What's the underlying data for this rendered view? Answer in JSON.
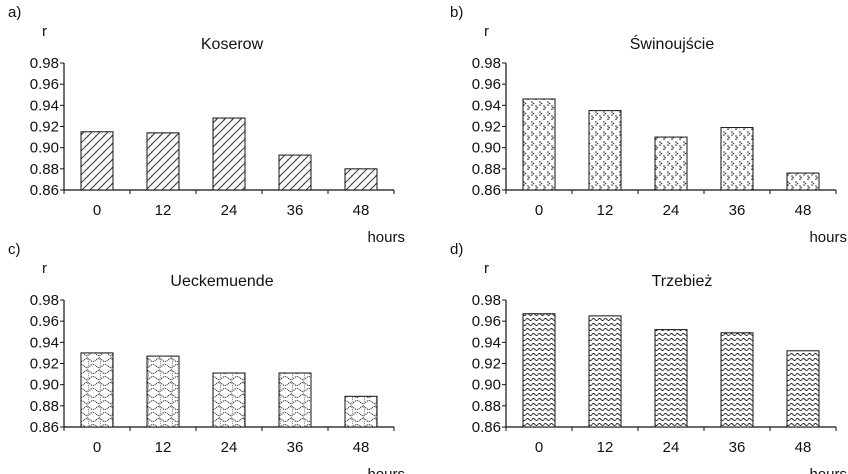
{
  "chart_data": [
    {
      "panel_label": "a)",
      "type": "bar",
      "title": "Koserow",
      "ylabel": "r",
      "xlabel": "hours",
      "categories": [
        "0",
        "12",
        "24",
        "36",
        "48"
      ],
      "values": [
        0.915,
        0.914,
        0.928,
        0.893,
        0.88
      ],
      "ylim": [
        0.86,
        0.98
      ],
      "yticks": [
        "0.98",
        "0.96",
        "0.94",
        "0.92",
        "0.90",
        "0.88",
        "0.86"
      ],
      "pattern": "diagonal-hatch",
      "grid": false
    },
    {
      "panel_label": "b)",
      "type": "bar",
      "title": "Świnoujście",
      "ylabel": "r",
      "xlabel": "hours",
      "categories": [
        "0",
        "12",
        "24",
        "36",
        "48"
      ],
      "values": [
        0.946,
        0.935,
        0.91,
        0.919,
        0.876
      ],
      "ylim": [
        0.86,
        0.98
      ],
      "yticks": [
        "0.98",
        "0.96",
        "0.94",
        "0.92",
        "0.90",
        "0.88",
        "0.86"
      ],
      "pattern": "chevron-dots",
      "grid": false
    },
    {
      "panel_label": "c)",
      "type": "bar",
      "title": "Ueckemuende",
      "ylabel": "r",
      "xlabel": "hours",
      "categories": [
        "0",
        "12",
        "24",
        "36",
        "48"
      ],
      "values": [
        0.93,
        0.927,
        0.911,
        0.911,
        0.889
      ],
      "ylim": [
        0.86,
        0.98
      ],
      "yticks": [
        "0.98",
        "0.96",
        "0.94",
        "0.92",
        "0.90",
        "0.88",
        "0.86"
      ],
      "pattern": "weave",
      "grid": false
    },
    {
      "panel_label": "d)",
      "type": "bar",
      "title": "Trzebież",
      "ylabel": "r",
      "xlabel": "hours",
      "categories": [
        "0",
        "12",
        "24",
        "36",
        "48"
      ],
      "values": [
        0.967,
        0.965,
        0.952,
        0.949,
        0.932
      ],
      "ylim": [
        0.86,
        0.98
      ],
      "yticks": [
        "0.98",
        "0.96",
        "0.94",
        "0.92",
        "0.90",
        "0.88",
        "0.86"
      ],
      "pattern": "wavy",
      "grid": false
    }
  ]
}
